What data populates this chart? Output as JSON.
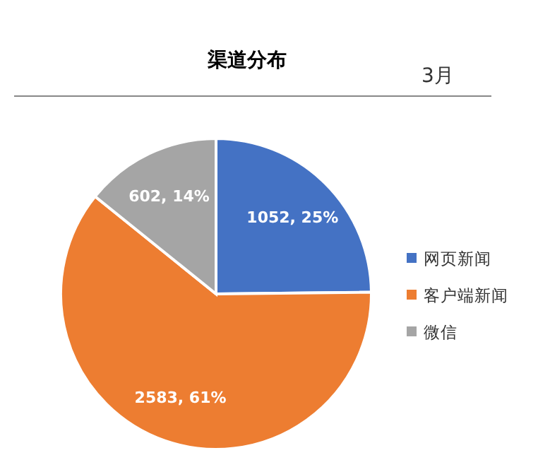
{
  "chart_data": {
    "type": "pie",
    "title": "渠道分布",
    "subtitle": "3月",
    "categories": [
      "网页新闻",
      "客户端新闻",
      "微信"
    ],
    "values": [
      1052,
      2583,
      602
    ],
    "colors": [
      "#4472c4",
      "#ed7d31",
      "#a5a5a5"
    ],
    "value_labels": [
      "1052, 25%",
      "2583, 61%",
      "602, 14%"
    ],
    "legend": "right"
  }
}
